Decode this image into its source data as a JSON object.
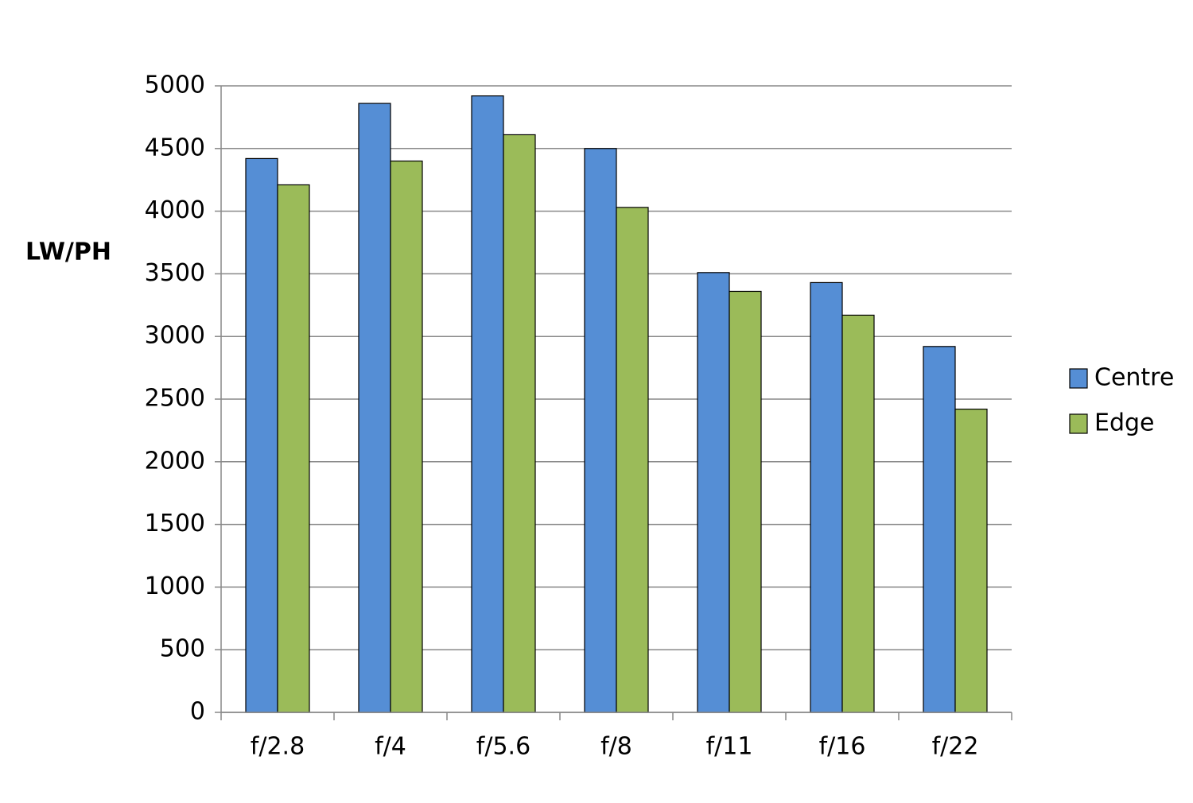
{
  "chart_data": {
    "type": "bar",
    "y_label": "LW/PH",
    "categories": [
      "f/2.8",
      "f/4",
      "f/5.6",
      "f/8",
      "f/11",
      "f/16",
      "f/22"
    ],
    "series": [
      {
        "name": "Centre",
        "color": "#558ed5",
        "values": [
          4420,
          4860,
          4920,
          4500,
          3510,
          3430,
          2920
        ]
      },
      {
        "name": "Edge",
        "color": "#9bbb59",
        "values": [
          4210,
          4400,
          4610,
          4030,
          3360,
          3170,
          2420
        ]
      }
    ],
    "ylim": [
      0,
      5000
    ],
    "yticks": [
      0,
      500,
      1000,
      1500,
      2000,
      2500,
      3000,
      3500,
      4000,
      4500,
      5000
    ],
    "grid": true,
    "legend": "right"
  }
}
